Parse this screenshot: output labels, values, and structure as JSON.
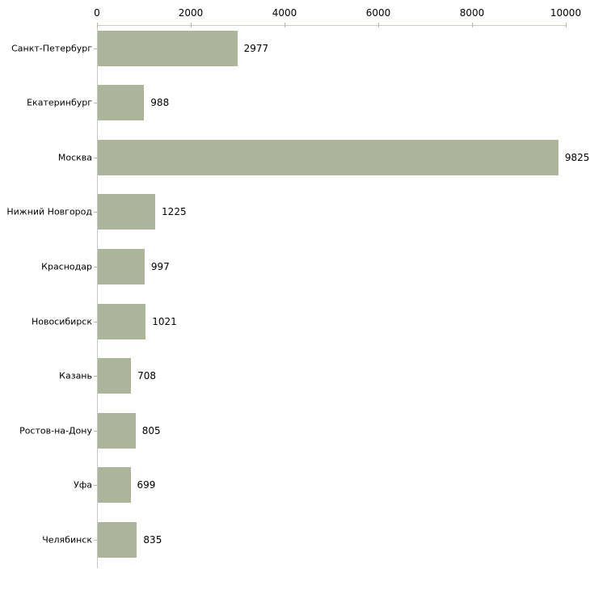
{
  "chart_data": {
    "type": "bar",
    "orientation": "horizontal",
    "title": "",
    "xlabel": "",
    "ylabel": "",
    "grid": false,
    "legend": false,
    "axis_position": "top",
    "categories": [
      "Санкт-Петербург",
      "Екатеринбург",
      "Москва",
      "Нижний Новгород",
      "Краснодар",
      "Новосибирск",
      "Казань",
      "Ростов-на-Дону",
      "Уфа",
      "Челябинск"
    ],
    "values": [
      2977,
      988,
      9825,
      1225,
      997,
      1021,
      708,
      805,
      699,
      835
    ],
    "value_labels": [
      "2977",
      "988",
      "9825",
      "1225",
      "997",
      "1021",
      "708",
      "805",
      "699",
      "835"
    ],
    "x_ticks": [
      0,
      2000,
      4000,
      6000,
      8000,
      10000
    ],
    "x_tick_labels": [
      "0",
      "2000",
      "4000",
      "6000",
      "8000",
      "10000"
    ],
    "xlim": [
      0,
      10000
    ],
    "colors": {
      "bar_fill": "#acb49a",
      "x_axis_line": "#ccccbb",
      "y_axis_line": "#c6c6c6",
      "tick_mark": "#b9b999",
      "text": "#000000",
      "background": "#ffffff"
    }
  }
}
